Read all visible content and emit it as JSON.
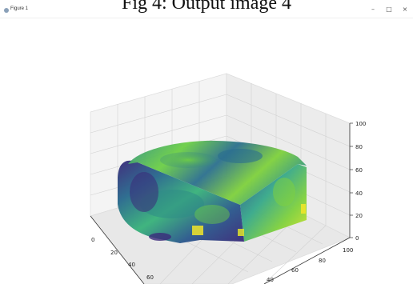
{
  "window": {
    "title": "Figure 1",
    "caption": "Fig 4: Output image 4",
    "controls": {
      "minimize": "–",
      "maximize": "□",
      "close": "×"
    }
  },
  "axes3d": {
    "z_ticks": [
      "0",
      "20",
      "40",
      "60",
      "80",
      "100"
    ],
    "y_ticks": [
      "0",
      "20",
      "40",
      "60",
      "80",
      "100"
    ],
    "x_ticks": [
      "0",
      "20",
      "40",
      "60"
    ],
    "x_ticks_lower": [
      "40",
      "60",
      "80",
      "100"
    ]
  },
  "colors": {
    "volume_dark": "#3b2a7a",
    "volume_mid": "#2a9a8a",
    "volume_bright": "#7fd13c",
    "volume_yellow": "#f2e629"
  }
}
